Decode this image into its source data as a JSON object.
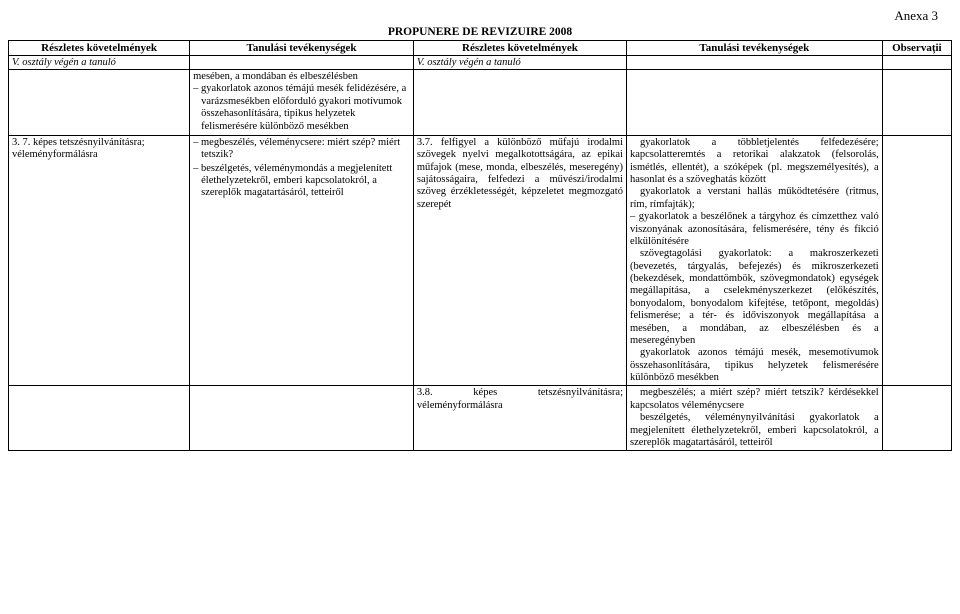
{
  "annex": "Anexa 3",
  "title": "PROPUNERE DE REVIZUIRE 2008",
  "headers": {
    "h1": "Részletes követelmények",
    "h2": "Tanulási tevékenységek",
    "h3": "Részletes követelmények",
    "h4": "Tanulási tevékenységek",
    "h5": "Observații",
    "s1": "V. osztály végén a tanuló",
    "s3": "V. osztály végén a tanuló"
  },
  "r1": {
    "c2a": "mesében, a mondában és elbeszélésben",
    "c2b": "– gyakorlatok azonos témájú mesék felidézésére, a varázsmesékben előforduló gyakori motívumok összehasonlítására, tipikus helyzetek felismerésére különböző mesékben"
  },
  "r2": {
    "c1": "3. 7. képes tetszésnyilvánításra; véleményformálásra",
    "c2a": "– megbeszélés, véleménycsere: miért szép? miért tetszik?",
    "c2b": "– beszélgetés, véleménymondás a megjelenített élethelyzetekről, emberi kapcsolatokról, a szereplők magatartásáról, tetteiről",
    "c3": "3.7. felfigyel a különböző műfajú irodalmi szövegek nyelvi megalkotottságára, az epikai műfajok (mese, monda, elbeszélés, meseregény) sajátosságaira, felfedezi a művészi/irodalmi szöveg érzékletességét, képzeletet megmozgató szerepét",
    "c4p1": "gyakorlatok a többletjelentés felfedezésére; kapcsolatteremtés a retorikai alakzatok (felsorolás, ismétlés, ellentét), a szóképek (pl. megszemélyesítés), a hasonlat és a szöveghatás között",
    "c4p2": "gyakorlatok a verstani hallás működtetésére (ritmus, rím, rímfajták);",
    "c4p3": "– gyakorlatok a beszélőnek a tárgyhoz és címzetthez való viszonyának azonosítására, felismerésére, tény és fikció elkülönítésére",
    "c4p4": "szövegtagolási gyakorlatok: a makroszerkezeti (bevezetés, tárgyalás, befejezés) és mikroszerkezeti (bekezdések, mondattömbök, szövegmondatok) egységek megállapítása, a cselekményszerkezet (előkészítés, bonyodalom, bonyodalom kifejtése, tetőpont, megoldás) felismerése; a tér- és időviszonyok megállapítása a mesében, a mondában, az elbeszélésben és a meseregényben",
    "c4p5": "gyakorlatok azonos témájú mesék, mesemotívumok összehasonlítására, tipikus helyzetek felismerésére különböző mesékben"
  },
  "r3": {
    "c3": "3.8. képes tetszésnyilvánításra; véleményformálásra",
    "c4p1": "megbeszélés; a miért szép? miért tetszik? kérdésekkel kapcsolatos véleménycsere",
    "c4p2": "beszélgetés, véleménynyilvánítási gyakorlatok a megjelenített élethelyzetekről, emberi kapcsolatokról, a szereplők magatartásáról, tetteiről"
  }
}
